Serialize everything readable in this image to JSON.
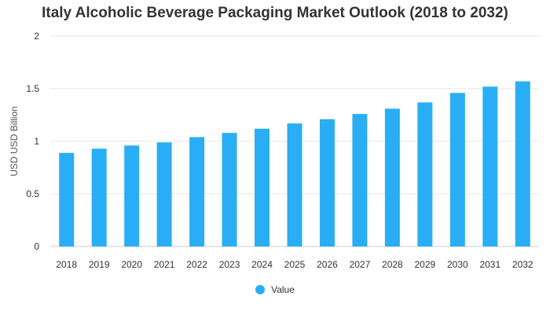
{
  "chart_data": {
    "type": "bar",
    "title": "Italy Alcoholic Beverage Packaging Market Outlook (2018 to 2032)",
    "xlabel": "",
    "ylabel": "USD USD Billion",
    "ylim": [
      0,
      2
    ],
    "yticks": [
      "0",
      "0.5",
      "1",
      "1.5",
      "2"
    ],
    "grid": true,
    "legend_position": "bottom",
    "categories": [
      "2018",
      "2019",
      "2020",
      "2021",
      "2022",
      "2023",
      "2024",
      "2025",
      "2026",
      "2027",
      "2028",
      "2029",
      "2030",
      "2031",
      "2032"
    ],
    "series": [
      {
        "name": "Value",
        "color": "#29aef5",
        "values": [
          0.89,
          0.93,
          0.96,
          0.99,
          1.04,
          1.08,
          1.12,
          1.17,
          1.21,
          1.26,
          1.31,
          1.37,
          1.46,
          1.52,
          1.57
        ]
      }
    ]
  }
}
